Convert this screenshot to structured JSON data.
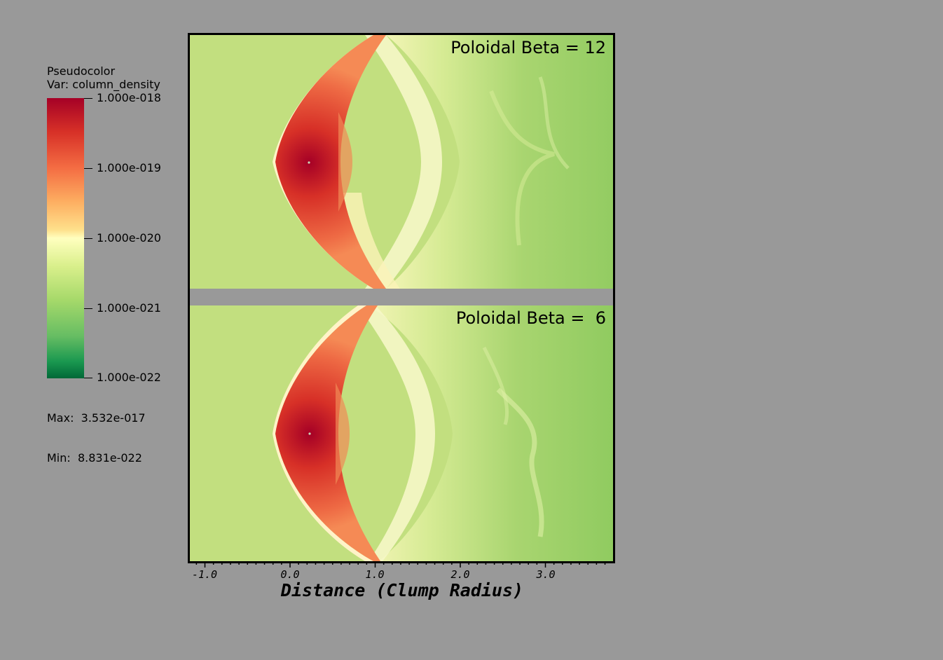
{
  "legend": {
    "title_line1": "Pseudocolor",
    "title_line2": "Var: column_density",
    "ticks": [
      "1.000e-018",
      "1.000e-019",
      "1.000e-020",
      "1.000e-021",
      "1.000e-022"
    ],
    "max_label": "Max:  3.532e-017",
    "min_label": "Min:  8.831e-022"
  },
  "panels": [
    {
      "label": "Poloidal Beta = 12"
    },
    {
      "label": "Poloidal Beta =  6"
    }
  ],
  "axis": {
    "title": "Distance (Clump Radius)",
    "tick_labels": [
      "-1.0",
      "0.0",
      "1.0",
      "2.0",
      "3.0"
    ]
  },
  "colors": {
    "background": "#999999",
    "ambient": "#c2df7f",
    "wake": "#a8d46c",
    "core": "#c62a2a"
  }
}
